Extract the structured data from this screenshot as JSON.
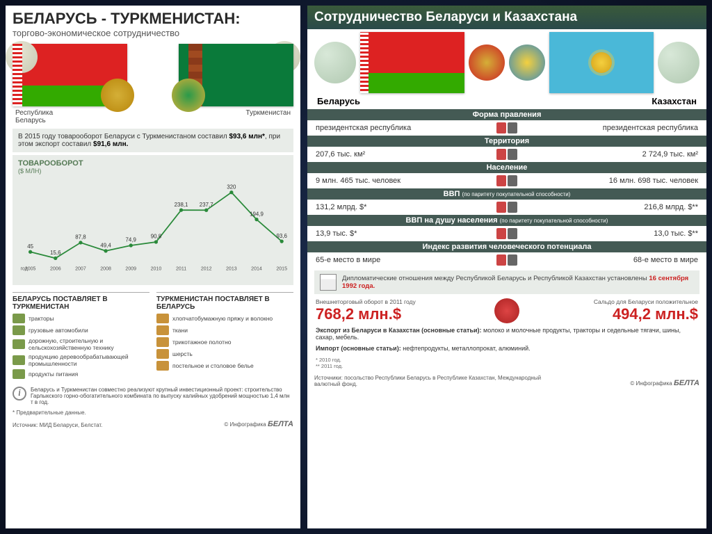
{
  "left": {
    "title": "БЕЛАРУСЬ - ТУРКМЕНИСТАН:",
    "subtitle": "торгово-экономическое сотрудничество",
    "country_l": "Республика\nБеларусь",
    "country_r": "Туркменистан",
    "info_text": "В 2015 году товарооборот Беларуси с Туркменистаном составил $93,6 млн*, при этом экспорт составил $91,6 млн.",
    "chart": {
      "type": "line",
      "title": "ТОВАРООБОРОТ",
      "unit": "($ МЛН)",
      "years": [
        "2005",
        "2006",
        "2007",
        "2008",
        "2009",
        "2010",
        "2011",
        "2012",
        "2013",
        "2014",
        "2015"
      ],
      "values": [
        45,
        15.6,
        87.8,
        49.4,
        74.9,
        90.8,
        238.1,
        237.7,
        320,
        194.9,
        93.6
      ],
      "labels": [
        "45",
        "15,6",
        "87,8",
        "49,4",
        "74,9",
        "90,8",
        "238,1",
        "237,7",
        "320",
        "194,9",
        "93,6"
      ],
      "line_color": "#2a8a3a",
      "marker_color": "#2a8a3a",
      "label_fontsize": 9,
      "ylim": [
        0,
        340
      ],
      "year_label": "год"
    },
    "supply_l_title": "БЕЛАРУСЬ ПОСТАВЛЯЕТ В ТУРКМЕНИСТАН",
    "supply_l": [
      {
        "icon_color": "#7a9a4a",
        "label": "тракторы"
      },
      {
        "icon_color": "#7a9a4a",
        "label": "грузовые автомобили"
      },
      {
        "icon_color": "#7a9a4a",
        "label": "дорожную, строительную и сельскохозяйственную технику"
      },
      {
        "icon_color": "#7a9a4a",
        "label": "продукцию деревообрабатывающей промышленности"
      },
      {
        "icon_color": "#7a9a4a",
        "label": "продукты питания"
      }
    ],
    "supply_r_title": "ТУРКМЕНИСТАН ПОСТАВЛЯЕТ В БЕЛАРУСЬ",
    "supply_r": [
      {
        "icon_color": "#c8923a",
        "label": "хлопчатобумажную пряжу и волокно"
      },
      {
        "icon_color": "#c8923a",
        "label": "ткани"
      },
      {
        "icon_color": "#c8923a",
        "label": "трикотажное полотно"
      },
      {
        "icon_color": "#c8923a",
        "label": "шерсть"
      },
      {
        "icon_color": "#c8923a",
        "label": "постельное и столовое белье"
      }
    ],
    "footnote": "Беларусь и Туркменистан совместно реализуют крупный инвестиционный проект: строительство Гарлыкского горно-обогатительного комбината по выпуску калийных удобрений мощностью 1,4 млн т в год.",
    "prelim": "* Предварительные данные.",
    "source": "Источник: МИД Беларуси, Белстат.",
    "copyright": "© Инфографика",
    "logo": "БЕЛТА"
  },
  "right": {
    "title": "Сотрудничество Беларуси и Казахстана",
    "country_l": "Беларусь",
    "country_r": "Казахстан",
    "sections": [
      {
        "h": "Форма правления",
        "lv": "президентская республика",
        "rv": "президентская республика",
        "ic": "people"
      },
      {
        "h": "Территория",
        "lv": "207,6 тыс. км²",
        "rv": "2 724,9 тыс. км²",
        "ic": "area"
      },
      {
        "h": "Население",
        "lv": "9 млн. 465 тыс. человек",
        "rv": "16 млн. 698 тыс. человек",
        "ic": "pop"
      },
      {
        "h": "ВВП",
        "hs": "(по паритету покупательной способности)",
        "lv": "131,2 млрд. $*",
        "rv": "216,8 млрд. $**",
        "ic": "gdp"
      },
      {
        "h": "ВВП на душу населения",
        "hs": "(по паритету покупательной способности)",
        "lv": "13,9 тыс. $*",
        "rv": "13,0 тыс. $**",
        "ic": "gdppc"
      },
      {
        "h": "Индекс развития человеческого потенциала",
        "lv": "65-е место в мире",
        "rv": "68-е место в мире",
        "ic": "hdi"
      }
    ],
    "diplo_text": "Дипломатические отношения между Республикой Беларусь и Республикой Казахстан установлены ",
    "diplo_date": "16 сентября 1992 года.",
    "trade_l_label": "Внешнеторговый оборот в 2011 году",
    "trade_l_val": "768,2 млн.$",
    "trade_r_label": "Сальдо для Беларуси положительное",
    "trade_r_val": "494,2 млн.$",
    "export_title": "Экспорт из Беларуси в Казахстан (основные статьи):",
    "export_text": " молоко и молочные продукты, тракторы и седельные тягачи, шины, сахар, мебель.",
    "import_title": "Импорт (основные статьи):",
    "import_text": " нефтепродукты, металлопрокат, алюминий.",
    "years_note": "* 2010 год.\n** 2011 год.",
    "source": "Источники: посольство Республики Беларусь в Республике Казахстан, Международный валютный фонд.",
    "copyright": "© Инфографика",
    "logo": "БЕЛТА"
  }
}
